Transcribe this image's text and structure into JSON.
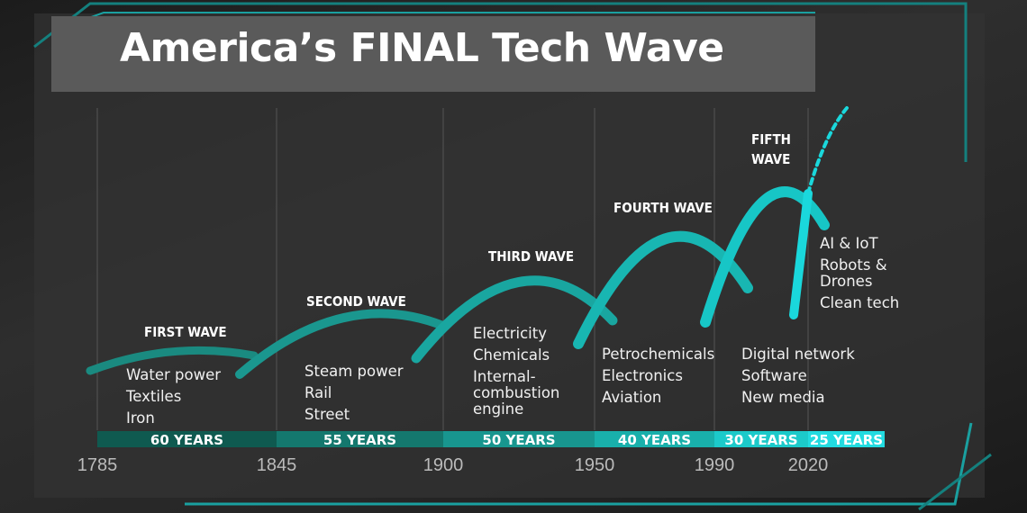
{
  "title": "America’s FINAL Tech Wave",
  "timeline": {
    "years": [
      "1785",
      "1845",
      "1900",
      "1950",
      "1990",
      "2020"
    ],
    "durations": [
      "60 YEARS",
      "55 YEARS",
      "50 YEARS",
      "40 YEARS",
      "30 YEARS",
      "25 YEARS"
    ]
  },
  "waves": [
    {
      "label": "FIRST WAVE",
      "items": [
        "Water power",
        "Textiles",
        "Iron"
      ]
    },
    {
      "label": "SECOND WAVE",
      "items": [
        "Steam power",
        "Rail",
        "Street"
      ]
    },
    {
      "label": "THIRD WAVE",
      "items": [
        "Electricity",
        "Chemicals",
        "Internal-combustion engine"
      ]
    },
    {
      "label": "FOURTH WAVE",
      "items": [
        "Petrochemicals",
        "Electronics",
        "Aviation"
      ]
    },
    {
      "label": "FIFTH WAVE",
      "items": [
        "Digital network",
        "Software",
        "New media"
      ]
    },
    {
      "items": [
        "AI & IoT",
        "Robots & Drones",
        "Clean tech"
      ]
    }
  ]
}
